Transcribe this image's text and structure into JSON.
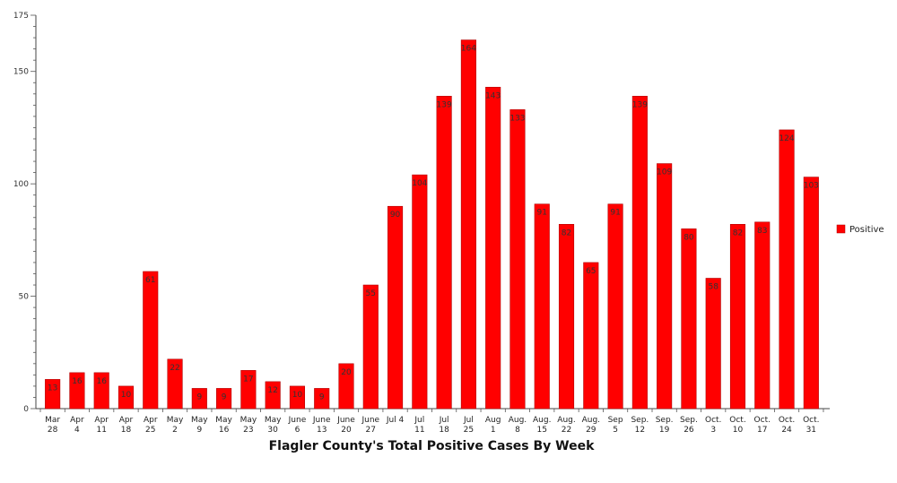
{
  "chart_data": {
    "type": "bar",
    "title": "Flagler County's Total Positive Cases By Week",
    "xlabel": "",
    "ylabel": "",
    "ylim": [
      0,
      175
    ],
    "yticks": [
      0,
      50,
      100,
      150,
      175
    ],
    "grid": false,
    "legend_position": "right",
    "categories": [
      [
        "Mar",
        "28"
      ],
      [
        "Apr",
        "4"
      ],
      [
        "Apr",
        "11"
      ],
      [
        "Apr",
        "18"
      ],
      [
        "Apr",
        "25"
      ],
      [
        "May",
        "2"
      ],
      [
        "May",
        "9"
      ],
      [
        "May",
        "16"
      ],
      [
        "May",
        "23"
      ],
      [
        "May",
        "30"
      ],
      [
        "June",
        "6"
      ],
      [
        "June",
        "13"
      ],
      [
        "June",
        "20"
      ],
      [
        "June",
        "27"
      ],
      [
        "Jul 4",
        ""
      ],
      [
        "Jul",
        "11"
      ],
      [
        "Jul",
        "18"
      ],
      [
        "Jul",
        "25"
      ],
      [
        "Aug",
        "1"
      ],
      [
        "Aug.",
        "8"
      ],
      [
        "Aug.",
        "15"
      ],
      [
        "Aug.",
        "22"
      ],
      [
        "Aug.",
        "29"
      ],
      [
        "Sep",
        "5"
      ],
      [
        "Sep.",
        "12"
      ],
      [
        "Sep.",
        "19"
      ],
      [
        "Sep.",
        "26"
      ],
      [
        "Oct.",
        "3"
      ],
      [
        "Oct.",
        "10"
      ],
      [
        "Oct.",
        "17"
      ],
      [
        "Oct.",
        "24"
      ],
      [
        "Oct.",
        "31"
      ]
    ],
    "series": [
      {
        "name": "Positive",
        "color": "#ff0000",
        "values": [
          13,
          16,
          16,
          10,
          61,
          22,
          9,
          9,
          17,
          12,
          10,
          9,
          20,
          55,
          90,
          104,
          139,
          164,
          143,
          133,
          91,
          82,
          65,
          91,
          139,
          109,
          80,
          58,
          82,
          83,
          124,
          103
        ],
        "labels": [
          "13",
          "16",
          "16",
          "10",
          "61",
          "22",
          "9",
          "9",
          "17",
          "12",
          "10",
          "9",
          "20",
          "55",
          "90",
          "104",
          "139",
          "164",
          "143",
          "133",
          "91",
          "82",
          "65",
          "91",
          "139",
          "109",
          "80",
          "58",
          "82",
          "83",
          "124",
          "103"
        ]
      }
    ]
  }
}
